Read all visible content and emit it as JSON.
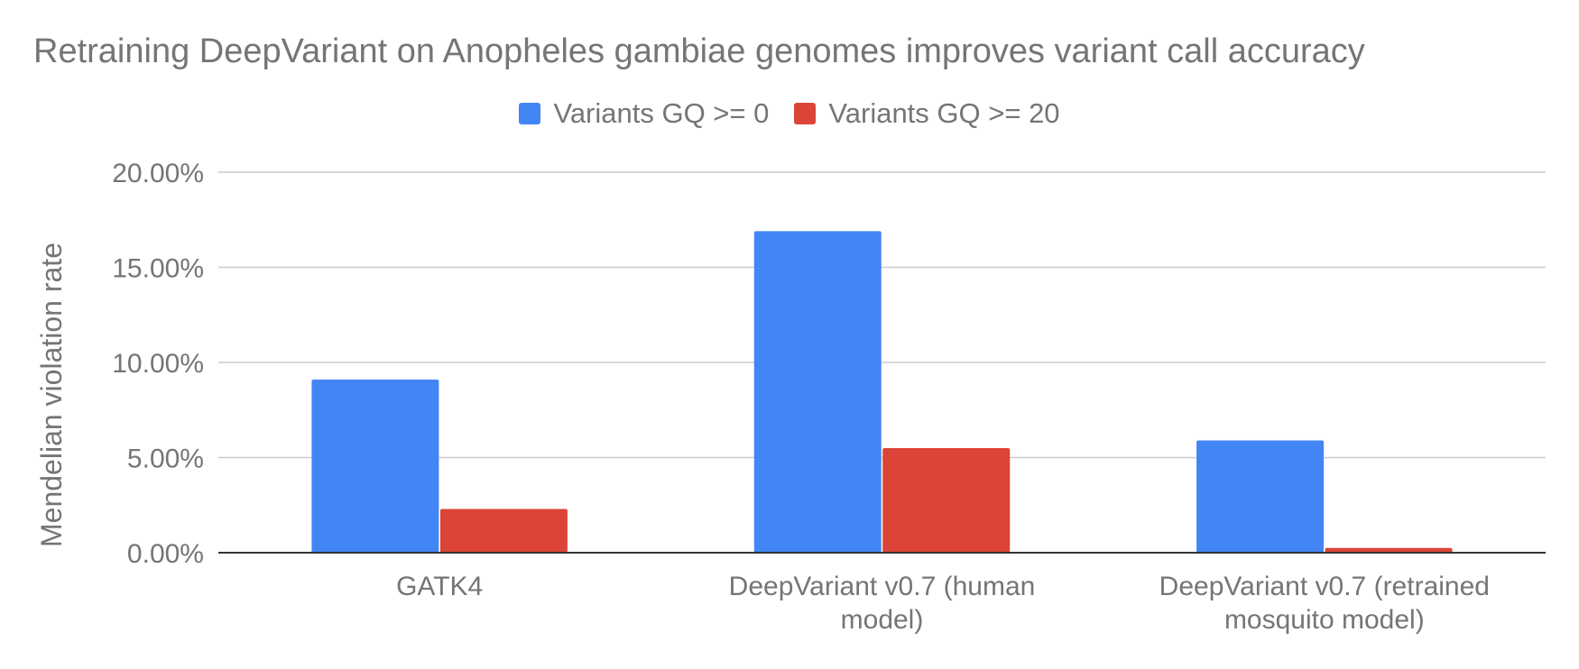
{
  "chart_data": {
    "type": "bar",
    "title": "Retraining DeepVariant on Anopheles gambiae genomes improves variant call accuracy",
    "xlabel": "",
    "ylabel": "Mendelian violation rate",
    "categories": [
      [
        "GATK4"
      ],
      [
        "DeepVariant v0.7 (human",
        "model)"
      ],
      [
        "DeepVariant v0.7 (retrained",
        "mosquito model)"
      ]
    ],
    "series": [
      {
        "name": "Variants GQ >= 0",
        "color": "#4285f4",
        "values": [
          9.1,
          16.9,
          5.9
        ]
      },
      {
        "name": "Variants GQ >= 20",
        "color": "#db4437",
        "values": [
          2.3,
          5.5,
          0.25
        ]
      }
    ],
    "ylim": [
      0,
      20
    ],
    "yticks": [
      "0.00%",
      "5.00%",
      "10.00%",
      "15.00%",
      "20.00%"
    ],
    "ytick_values": [
      0,
      5,
      10,
      15,
      20
    ],
    "grid": true,
    "legend_position": "top-center"
  }
}
